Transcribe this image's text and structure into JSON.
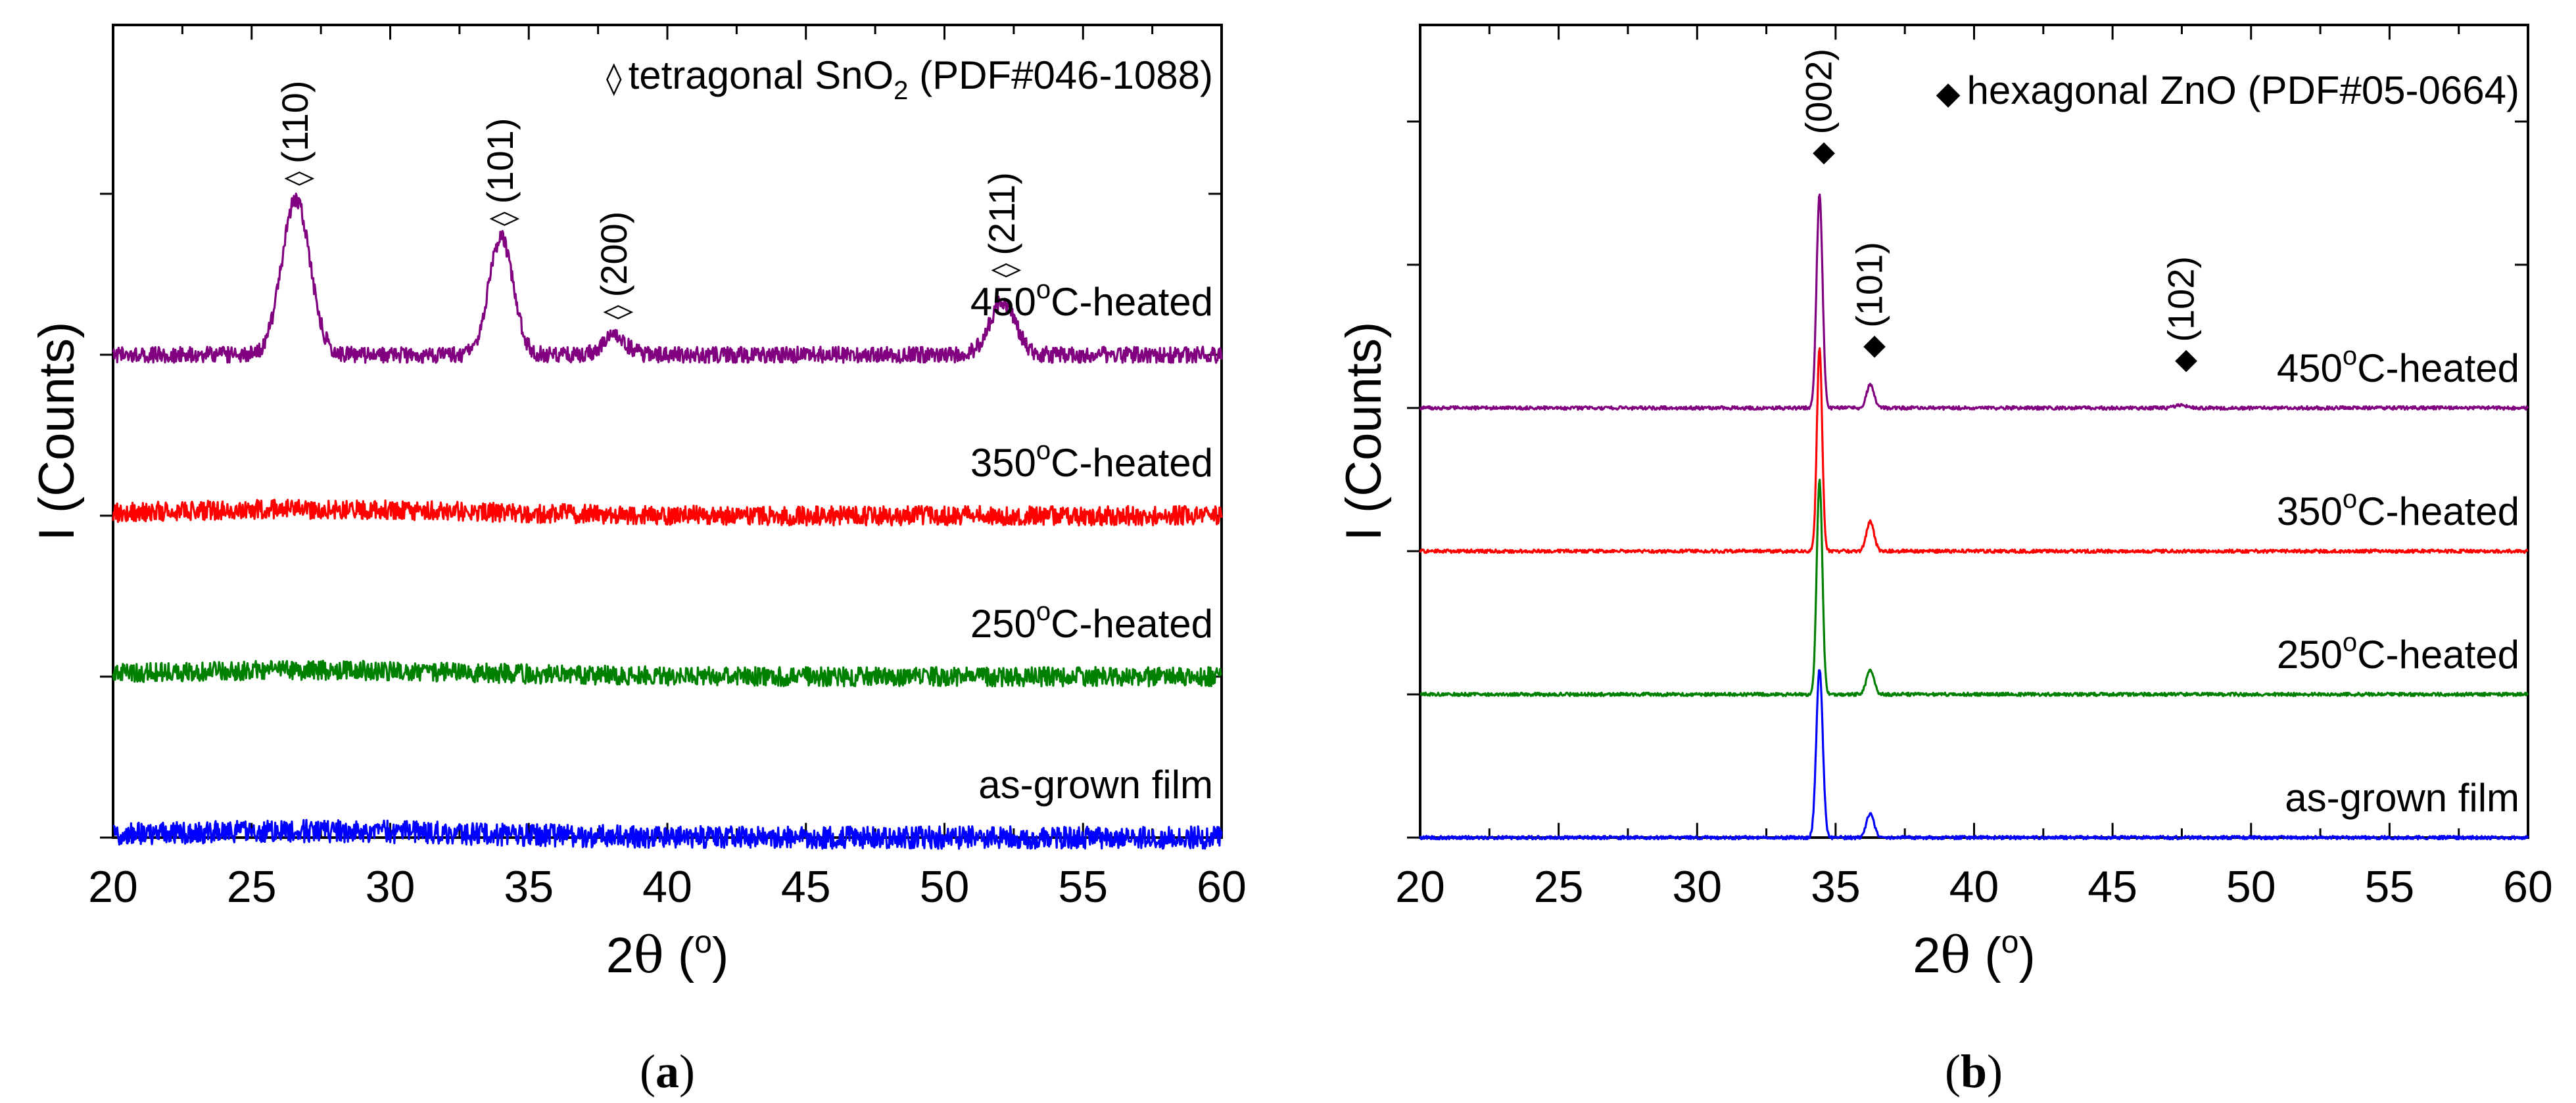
{
  "colors": {
    "series": [
      "#0000ff",
      "#008000",
      "#ff0000",
      "#800080"
    ],
    "axis": "#000000",
    "background": "#ffffff"
  },
  "chart_data": [
    {
      "type": "line",
      "caption_letter": "a",
      "caption_open": "(",
      "caption_close": ")",
      "xlabel_prefix": "2",
      "xlabel_theta": "θ",
      "xlabel_unit_open": " (",
      "xlabel_unit_sup": "o",
      "xlabel_unit_close": ")",
      "ylabel": "I (Counts)",
      "xlim": [
        20,
        60
      ],
      "xticks": [
        "20",
        "25",
        "30",
        "35",
        "40",
        "45",
        "50",
        "55",
        "60"
      ],
      "y_tick_offsets": [
        0,
        1,
        2,
        3,
        4
      ],
      "ylim": [
        0,
        5
      ],
      "phase_legend": {
        "marker": "◊",
        "text": "tetragonal SnO",
        "sub": "2",
        "suffix": " (PDF#046-1088)"
      },
      "series": [
        {
          "name": "as-grown film",
          "offset": 0,
          "noise": 0.07,
          "peaks": []
        },
        {
          "name": "250°C-heated",
          "label_temp": "250",
          "label_sup": "o",
          "label_rest": "C-heated",
          "offset": 1,
          "noise": 0.06,
          "peaks": []
        },
        {
          "name": "350°C-heated",
          "label_temp": "350",
          "label_sup": "o",
          "label_rest": "C-heated",
          "offset": 2,
          "noise": 0.06,
          "peaks": []
        },
        {
          "name": "450°C-heated",
          "label_temp": "450",
          "label_sup": "o",
          "label_rest": "C-heated",
          "offset": 3,
          "noise": 0.05,
          "peaks": [
            {
              "x": 26.6,
              "height": 0.97,
              "width": 0.75
            },
            {
              "x": 34.0,
              "height": 0.73,
              "width": 0.65
            },
            {
              "x": 38.1,
              "height": 0.12,
              "width": 0.6
            },
            {
              "x": 52.1,
              "height": 0.33,
              "width": 0.7
            }
          ]
        }
      ],
      "peak_labels": [
        {
          "x": 26.6,
          "y": 4.05,
          "marker": "◊",
          "text": "(110)"
        },
        {
          "x": 34.0,
          "y": 3.8,
          "marker": "◊",
          "text": "(101)"
        },
        {
          "x": 38.1,
          "y": 3.22,
          "marker": "◊",
          "text": "(200)"
        },
        {
          "x": 52.1,
          "y": 3.48,
          "marker": "◊",
          "text": "(211)"
        }
      ]
    },
    {
      "type": "line",
      "caption_letter": "b",
      "caption_open": "(",
      "caption_close": ")",
      "xlabel_prefix": "2",
      "xlabel_theta": "θ",
      "xlabel_unit_open": " (",
      "xlabel_unit_sup": "o",
      "xlabel_unit_close": ")",
      "ylabel": "I (Counts)",
      "xlim": [
        20,
        60
      ],
      "xticks": [
        "20",
        "25",
        "30",
        "35",
        "40",
        "45",
        "50",
        "55",
        "60"
      ],
      "y_tick_offsets": [
        0,
        1,
        2,
        3,
        4,
        5
      ],
      "ylim": [
        0,
        5.7
      ],
      "phase_legend": {
        "marker": "◆",
        "text": "hexagonal ZnO",
        "sub": "",
        "suffix": " (PDF#05-0664)"
      },
      "series": [
        {
          "name": "as-grown film",
          "offset": 0,
          "noise": 0.012,
          "peaks": [
            {
              "x": 34.42,
              "height": 1.18,
              "width": 0.17
            },
            {
              "x": 36.25,
              "height": 0.17,
              "width": 0.2
            }
          ]
        },
        {
          "name": "250°C-heated",
          "label_temp": "250",
          "label_sup": "o",
          "label_rest": "C-heated",
          "offset": 1,
          "noise": 0.012,
          "peaks": [
            {
              "x": 34.42,
              "height": 1.5,
              "width": 0.15
            },
            {
              "x": 36.25,
              "height": 0.17,
              "width": 0.2
            }
          ]
        },
        {
          "name": "350°C-heated",
          "label_temp": "350",
          "label_sup": "o",
          "label_rest": "C-heated",
          "offset": 2,
          "noise": 0.012,
          "peaks": [
            {
              "x": 34.42,
              "height": 1.43,
              "width": 0.14
            },
            {
              "x": 36.25,
              "height": 0.21,
              "width": 0.2
            }
          ]
        },
        {
          "name": "450°C-heated",
          "label_temp": "450",
          "label_sup": "o",
          "label_rest": "C-heated",
          "offset": 3,
          "noise": 0.012,
          "peaks": [
            {
              "x": 34.42,
              "height": 1.49,
              "width": 0.16
            },
            {
              "x": 36.25,
              "height": 0.16,
              "width": 0.2
            },
            {
              "x": 47.5,
              "height": 0.02,
              "width": 0.3
            }
          ]
        }
      ],
      "peak_labels": [
        {
          "x": 34.42,
          "y": 4.7,
          "marker": "◆",
          "text": "(002)"
        },
        {
          "x": 36.25,
          "y": 3.35,
          "marker": "◆",
          "text": "(101)"
        },
        {
          "x": 47.5,
          "y": 3.25,
          "marker": "◆",
          "text": "(102)"
        }
      ]
    }
  ]
}
